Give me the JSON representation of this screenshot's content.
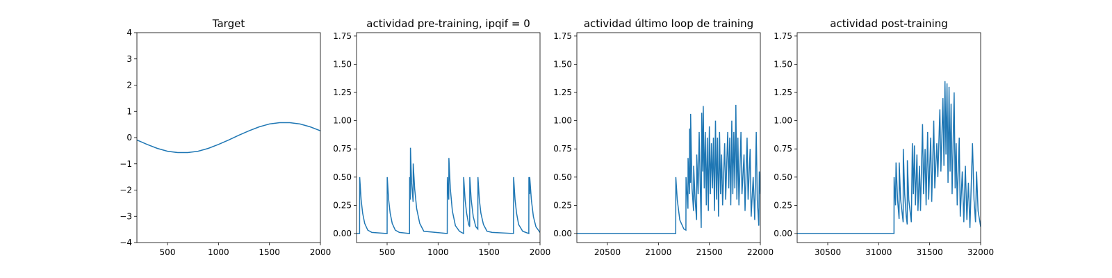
{
  "chart_data": [
    {
      "type": "line",
      "title": "Target",
      "color": "#1f77b4",
      "x": [
        200,
        300,
        400,
        500,
        600,
        700,
        800,
        900,
        1000,
        1100,
        1200,
        1300,
        1400,
        1500,
        1600,
        1700,
        1800,
        1900,
        2000
      ],
      "values": [
        -0.09,
        -0.26,
        -0.41,
        -0.52,
        -0.57,
        -0.57,
        -0.52,
        -0.41,
        -0.26,
        -0.09,
        0.09,
        0.26,
        0.41,
        0.52,
        0.57,
        0.57,
        0.52,
        0.41,
        0.26
      ],
      "xlim": [
        200,
        2000
      ],
      "xticks": [
        500,
        1000,
        1500,
        2000
      ],
      "ylim": [
        -4,
        4
      ],
      "yticks": [
        {
          "value": -4,
          "label": "−4"
        },
        {
          "value": -3,
          "label": "−3"
        },
        {
          "value": -2,
          "label": "−2"
        },
        {
          "value": -1,
          "label": "−1"
        },
        0,
        1,
        2,
        3,
        4
      ]
    },
    {
      "type": "line",
      "title": "actividad pre-training, ipqif = 0",
      "color": "#1f77b4",
      "x": [
        200,
        230,
        231,
        245,
        260,
        280,
        310,
        350,
        500,
        501,
        515,
        530,
        550,
        580,
        620,
        720,
        721,
        728,
        729,
        740,
        755,
        756,
        770,
        790,
        820,
        860,
        1090,
        1091,
        1105,
        1106,
        1120,
        1140,
        1170,
        1210,
        1250,
        1251,
        1265,
        1280,
        1300,
        1310,
        1311,
        1325,
        1345,
        1370,
        1390,
        1391,
        1405,
        1420,
        1445,
        1480,
        1530,
        1740,
        1741,
        1755,
        1770,
        1790,
        1830,
        1890,
        1891,
        1898,
        1899,
        1915,
        1935,
        1960,
        2000
      ],
      "values": [
        0,
        0,
        0.5,
        0.3,
        0.18,
        0.09,
        0.03,
        0.01,
        0,
        0.5,
        0.3,
        0.18,
        0.09,
        0.03,
        0.01,
        0,
        0.5,
        0.3,
        0.76,
        0.45,
        0.28,
        0.62,
        0.4,
        0.22,
        0.09,
        0.02,
        0,
        0.5,
        0.3,
        0.67,
        0.4,
        0.2,
        0.07,
        0.02,
        0,
        0.5,
        0.3,
        0.18,
        0.08,
        0.06,
        0.5,
        0.3,
        0.15,
        0.06,
        0.04,
        0.5,
        0.3,
        0.18,
        0.08,
        0.02,
        0.01,
        0,
        0.5,
        0.3,
        0.18,
        0.08,
        0.02,
        0,
        0.5,
        0.35,
        0.5,
        0.3,
        0.15,
        0.06,
        0.01
      ],
      "xlim": [
        200,
        2000
      ],
      "xticks": [
        500,
        1000,
        1500,
        2000
      ],
      "ylim": [
        -0.08,
        1.78
      ],
      "yticks": [
        {
          "value": 0,
          "label": "0.00"
        },
        0.25,
        {
          "value": 0.5,
          "label": "0.50"
        },
        0.75,
        {
          "value": 1,
          "label": "1.00"
        },
        1.25,
        {
          "value": 1.5,
          "label": "1.50"
        },
        1.75
      ]
    },
    {
      "type": "line",
      "title": "actividad último loop de training",
      "color": "#1f77b4",
      "x": [
        20200,
        21170,
        21171,
        21185,
        21210,
        21250,
        21270,
        21271,
        21290,
        21291,
        21305,
        21306,
        21315,
        21316,
        21330,
        21345,
        21346,
        21360,
        21375,
        21376,
        21390,
        21400,
        21410,
        21420,
        21425,
        21435,
        21440,
        21450,
        21460,
        21470,
        21480,
        21490,
        21500,
        21510,
        21520,
        21530,
        21540,
        21550,
        21560,
        21570,
        21580,
        21590,
        21600,
        21610,
        21620,
        21630,
        21650,
        21660,
        21680,
        21690,
        21700,
        21710,
        21720,
        21730,
        21740,
        21750,
        21760,
        21770,
        21780,
        21790,
        21810,
        21820,
        21840,
        21850,
        21870,
        21880,
        21900,
        21910,
        21930,
        21945,
        21960,
        21970,
        21985,
        21990,
        22000
      ],
      "values": [
        0,
        0,
        0.5,
        0.3,
        0.12,
        0.04,
        0.03,
        0.5,
        0.22,
        0.67,
        0.35,
        0.93,
        0.45,
        1.06,
        0.4,
        0.2,
        0.6,
        0.3,
        0.12,
        0.7,
        0.35,
        0.9,
        0.45,
        0.05,
        1.07,
        0.55,
        1.13,
        0.4,
        0.9,
        0.25,
        0.85,
        0.2,
        0.95,
        0.35,
        0.8,
        0.4,
        0.85,
        0.2,
        1.0,
        0.3,
        0.85,
        0.15,
        0.9,
        0.35,
        0.7,
        0.25,
        0.8,
        0.3,
        0.9,
        0.4,
        0.85,
        0.25,
        1.0,
        0.35,
        0.9,
        0.4,
        1.14,
        0.3,
        0.85,
        0.25,
        0.9,
        0.35,
        0.7,
        0.2,
        0.85,
        0.3,
        0.75,
        0.15,
        0.5,
        0.12,
        0.9,
        0.3,
        0.07,
        0.55,
        0.35
      ],
      "xlim": [
        20200,
        22000
      ],
      "xticks": [
        20500,
        21000,
        21500,
        22000
      ],
      "ylim": [
        -0.08,
        1.78
      ],
      "yticks": [
        {
          "value": 0,
          "label": "0.00"
        },
        0.25,
        {
          "value": 0.5,
          "label": "0.50"
        },
        0.75,
        {
          "value": 1,
          "label": "1.00"
        },
        1.25,
        {
          "value": 1.5,
          "label": "1.50"
        },
        1.75
      ]
    },
    {
      "type": "line",
      "title": "actividad post-training",
      "color": "#1f77b4",
      "x": [
        30200,
        31150,
        31151,
        31165,
        31170,
        31185,
        31200,
        31201,
        31215,
        31240,
        31241,
        31255,
        31270,
        31280,
        31281,
        31295,
        31320,
        31330,
        31340,
        31350,
        31360,
        31375,
        31385,
        31400,
        31410,
        31430,
        31440,
        31455,
        31465,
        31480,
        31490,
        31510,
        31520,
        31540,
        31550,
        31570,
        31580,
        31600,
        31610,
        31630,
        31640,
        31650,
        31660,
        31670,
        31680,
        31690,
        31700,
        31710,
        31720,
        31740,
        31750,
        31760,
        31770,
        31790,
        31800,
        31820,
        31835,
        31850,
        31865,
        31880,
        31895,
        31920,
        31935,
        31950,
        31960,
        31975,
        32000
      ],
      "values": [
        0,
        0,
        0.5,
        0.25,
        0.63,
        0.3,
        0.13,
        0.63,
        0.3,
        0.1,
        0.75,
        0.35,
        0.15,
        0.08,
        0.65,
        0.3,
        0.1,
        0.8,
        0.35,
        0.78,
        0.25,
        0.7,
        0.2,
        0.6,
        0.2,
        0.97,
        0.35,
        0.75,
        0.25,
        0.9,
        0.3,
        0.85,
        0.28,
        1.0,
        0.4,
        0.8,
        0.5,
        1.1,
        0.55,
        1.2,
        0.6,
        1.35,
        0.7,
        1.33,
        0.45,
        1.3,
        0.55,
        1.15,
        0.35,
        1.25,
        0.4,
        0.8,
        0.25,
        0.85,
        0.15,
        0.55,
        0.1,
        0.6,
        0.12,
        0.45,
        0.05,
        0.8,
        0.3,
        0.1,
        0.55,
        0.2,
        0.06
      ],
      "xlim": [
        30200,
        32000
      ],
      "xticks": [
        30500,
        31000,
        31500,
        32000
      ],
      "ylim": [
        -0.08,
        1.78
      ],
      "yticks": [
        {
          "value": 0,
          "label": "0.00"
        },
        0.25,
        {
          "value": 0.5,
          "label": "0.50"
        },
        0.75,
        {
          "value": 1,
          "label": "1.00"
        },
        1.25,
        {
          "value": 1.5,
          "label": "1.50"
        },
        1.75
      ]
    }
  ]
}
